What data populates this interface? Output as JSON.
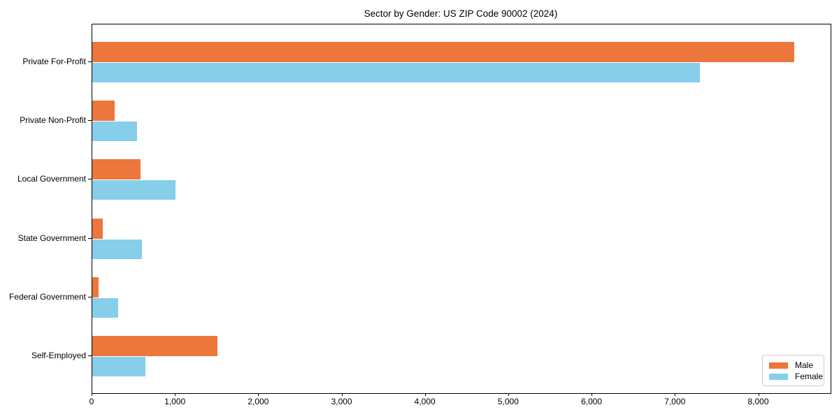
{
  "title": "Sector by Gender: US ZIP Code 90002 (2024)",
  "chart_data": {
    "type": "bar",
    "orientation": "horizontal",
    "title": "Sector by Gender: US ZIP Code 90002 (2024)",
    "categories": [
      "Private For-Profit",
      "Private Non-Profit",
      "Local Government",
      "State Government",
      "Federal Government",
      "Self-Employed"
    ],
    "series": [
      {
        "name": "Male",
        "color": "#ec763b",
        "values": [
          8420,
          270,
          575,
          125,
          75,
          1505
        ]
      },
      {
        "name": "Female",
        "color": "#87ceeb",
        "values": [
          7290,
          535,
          1000,
          595,
          310,
          635
        ]
      }
    ],
    "xlim": [
      0,
      8860
    ],
    "xticks": [
      0,
      1000,
      2000,
      3000,
      4000,
      5000,
      6000,
      7000,
      8000
    ],
    "xtick_labels": [
      "0",
      "1,000",
      "2,000",
      "3,000",
      "4,000",
      "5,000",
      "6,000",
      "7,000",
      "8,000"
    ],
    "xlabel": "",
    "ylabel": "",
    "grid": false,
    "legend_position": "lower right"
  }
}
